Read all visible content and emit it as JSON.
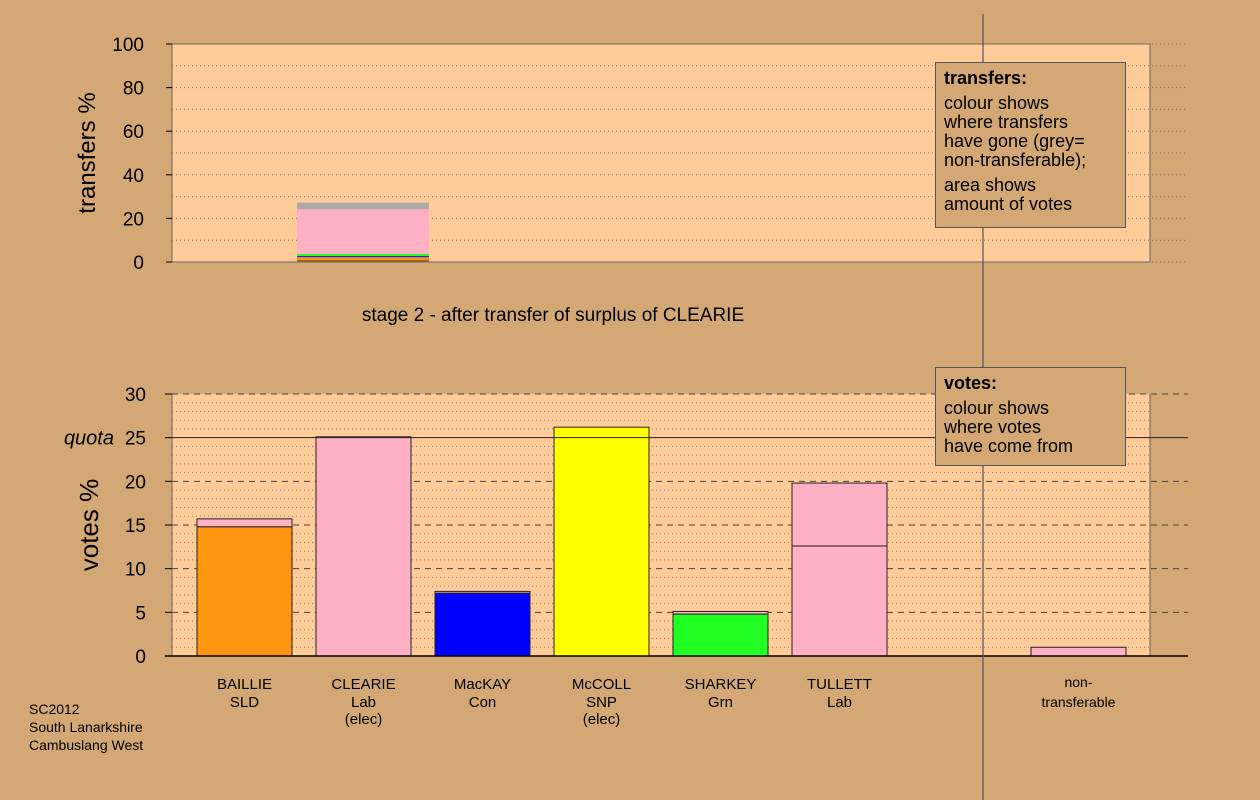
{
  "stage_title": "stage 2 - after transfer of surplus of CLEARIE",
  "transfers_legend": {
    "title": "transfers:",
    "para1": "colour shows where transfers have gone (grey= non-transferable);",
    "para1_lines": [
      "colour shows",
      "where transfers",
      "have gone (grey=",
      "non-transferable);"
    ],
    "para2_lines": [
      "area shows",
      "amount of votes"
    ]
  },
  "votes_legend": {
    "title": "votes:",
    "para_lines": [
      "colour shows",
      "where votes",
      "have come from"
    ]
  },
  "credits": [
    "SC2012",
    "South Lanarkshire",
    "Cambuslang West"
  ],
  "chart_data": [
    {
      "type": "bar",
      "stacked": true,
      "ylabel": "transfers %",
      "ylim": [
        0,
        100
      ],
      "yticks": [
        0,
        20,
        40,
        60,
        80,
        100
      ],
      "bars": [
        {
          "from": "CLEARIE",
          "segments": [
            {
              "to": "BAILLIE",
              "value": 2.2,
              "color": "#ff9411"
            },
            {
              "to": "MacKAY",
              "value": 0.5,
              "color": "#0000ff"
            },
            {
              "to": "SHARKEY",
              "value": 1.0,
              "color": "#22ff22"
            },
            {
              "to": "TULLETT",
              "value": 20.5,
              "color": "#ffb0c4"
            },
            {
              "to": "non-transferable",
              "value": 3.0,
              "color": "#aaaaaa"
            }
          ]
        }
      ]
    },
    {
      "type": "bar",
      "stacked": true,
      "ylabel": "votes %",
      "ylim": [
        0,
        30
      ],
      "yticks": [
        0,
        5,
        10,
        15,
        20,
        25,
        30
      ],
      "quota": 25,
      "quota_label": "quota",
      "candidates": [
        {
          "name": "BAILLIE",
          "party": "SLD",
          "note": "",
          "segments": [
            {
              "value": 14.8,
              "color": "#ff9411"
            },
            {
              "value": 0.9,
              "color": "#ffb0c4"
            }
          ]
        },
        {
          "name": "CLEARIE",
          "party": "Lab",
          "note": "(elec)",
          "segments": [
            {
              "value": 25.1,
              "color": "#ffb0c4"
            }
          ]
        },
        {
          "name": "MacKAY",
          "party": "Con",
          "note": "",
          "segments": [
            {
              "value": 7.2,
              "color": "#0000ff"
            },
            {
              "value": 0.2,
              "color": "#ffb0c4"
            }
          ]
        },
        {
          "name": "McCOLL",
          "party": "SNP",
          "note": "(elec)",
          "segments": [
            {
              "value": 26.2,
              "color": "#ffff00"
            }
          ]
        },
        {
          "name": "SHARKEY",
          "party": "Grn",
          "note": "",
          "segments": [
            {
              "value": 4.8,
              "color": "#22ff22"
            },
            {
              "value": 0.3,
              "color": "#ffb0c4"
            }
          ]
        },
        {
          "name": "TULLETT",
          "party": "Lab",
          "note": "",
          "segments": [
            {
              "value": 12.6,
              "color": "#ffb0c4"
            },
            {
              "value": 7.2,
              "color": "#ffb0c4"
            }
          ]
        }
      ],
      "nontransferable": {
        "label_lines": [
          "non-",
          "transferable"
        ],
        "value": 1.0,
        "color": "#ffb0c4"
      }
    }
  ]
}
